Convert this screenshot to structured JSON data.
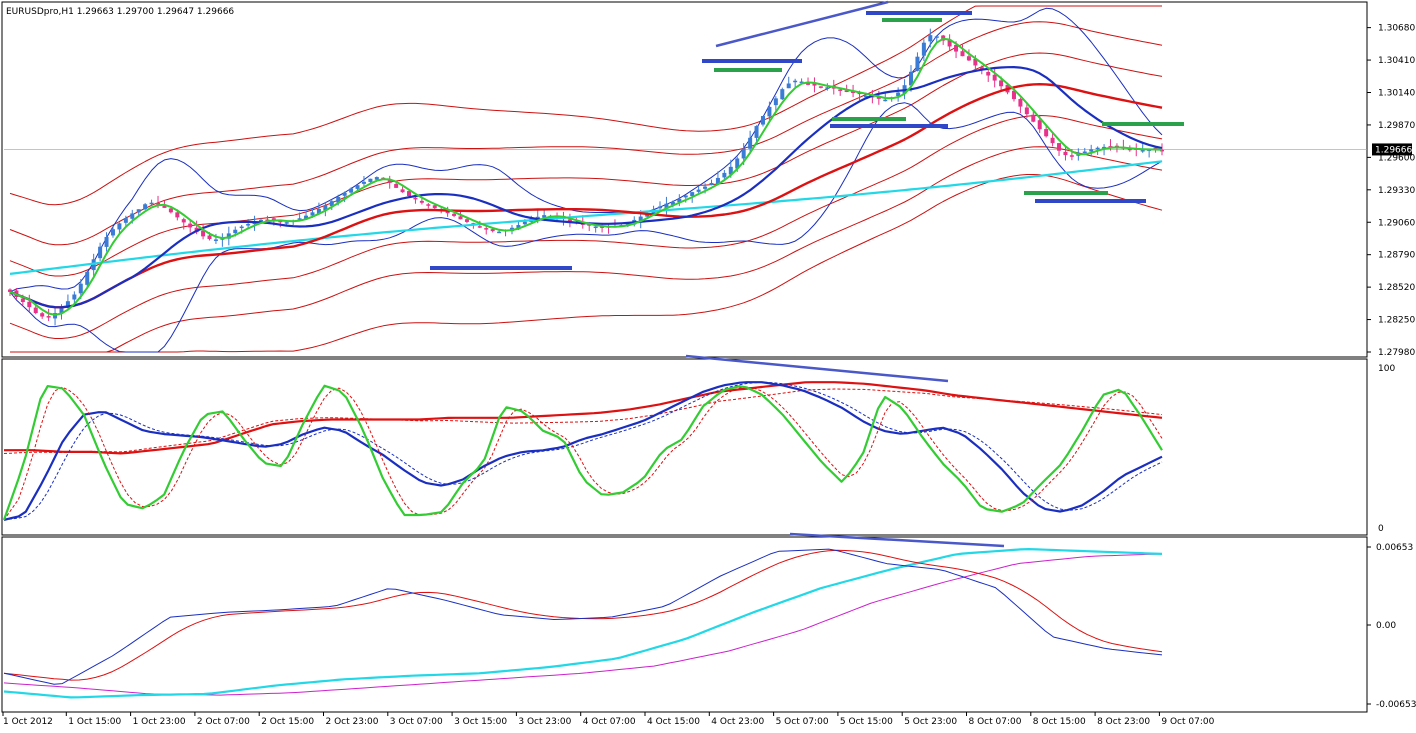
{
  "symbol_label": "EURUSDpro,H1  1.29663 1.29700 1.29647 1.29666",
  "colors": {
    "bull": "#3a7bd5",
    "bear": "#e8318a",
    "ema_fast": "#33cc33",
    "ma_blue": "#1a2fc0",
    "ma_red": "#dd1111",
    "ma_cyan": "#22d8e6",
    "band_blue": "#1a2fc0",
    "band_red": "#cc1111",
    "hline_blue": "#3048c8",
    "hline_green": "#2aa14a",
    "trend_blue": "#4a58c8",
    "magenta": "#cc22cc",
    "grid": "#c8c8c8",
    "frame": "#000000"
  },
  "chart_data": [
    {
      "type": "line",
      "panel": "price",
      "title": "EURUSDpro,H1",
      "ohlc_readout": {
        "open": 1.29663,
        "high": 1.297,
        "low": 1.29647,
        "close": 1.29666
      },
      "y_ticks": [
        "1.30680",
        "1.30410",
        "1.30140",
        "1.29870",
        "1.29600",
        "1.29330",
        "1.29060",
        "1.28790",
        "1.28520",
        "1.28250",
        "1.27980"
      ],
      "ylim": [
        1.2798,
        1.3086
      ],
      "current_price_label": "1.29666",
      "x_ticks": [
        "1 Oct 2012",
        "1 Oct 15:00",
        "1 Oct 23:00",
        "2 Oct 07:00",
        "2 Oct 15:00",
        "2 Oct 23:00",
        "3 Oct 07:00",
        "3 Oct 15:00",
        "3 Oct 23:00",
        "4 Oct 07:00",
        "4 Oct 15:00",
        "4 Oct 23:00",
        "5 Oct 07:00",
        "5 Oct 15:00",
        "5 Oct 23:00",
        "8 Oct 07:00",
        "8 Oct 15:00",
        "8 Oct 23:00",
        "9 Oct 07:00"
      ],
      "close_path": [
        1.2848,
        1.2842,
        1.2836,
        1.2829,
        1.2826,
        1.2831,
        1.2838,
        1.2846,
        1.2859,
        1.2874,
        1.2889,
        1.2899,
        1.2906,
        1.2912,
        1.2917,
        1.2923,
        1.2921,
        1.2917,
        1.2911,
        1.2905,
        1.2899,
        1.2894,
        1.2891,
        1.2893,
        1.2898,
        1.2902,
        1.2905,
        1.2908,
        1.2908,
        1.2907,
        1.2906,
        1.2908,
        1.2911,
        1.2915,
        1.2919,
        1.2924,
        1.2929,
        1.2934,
        1.2938,
        1.2942,
        1.2944,
        1.294,
        1.2934,
        1.2929,
        1.2925,
        1.2921,
        1.2918,
        1.2915,
        1.2912,
        1.2908,
        1.2905,
        1.2902,
        1.2899,
        1.2898,
        1.29,
        1.2903,
        1.2907,
        1.291,
        1.2912,
        1.2911,
        1.2909,
        1.2906,
        1.2904,
        1.2903,
        1.2902,
        1.2902,
        1.2903,
        1.2905,
        1.2909,
        1.2913,
        1.2917,
        1.2921,
        1.2923,
        1.2927,
        1.2931,
        1.2934,
        1.2938,
        1.2944,
        1.295,
        1.296,
        1.2972,
        1.2986,
        1.2998,
        1.3008,
        1.3019,
        1.3024,
        1.3023,
        1.302,
        1.3019,
        1.3018,
        1.3016,
        1.3014,
        1.3013,
        1.3011,
        1.3009,
        1.3008,
        1.3011,
        1.3019,
        1.3035,
        1.3054,
        1.3063,
        1.3059,
        1.3052,
        1.3046,
        1.3041,
        1.3035,
        1.3029,
        1.3023,
        1.3016,
        1.3008,
        1.2999,
        1.299,
        1.2981,
        1.2973,
        1.2964,
        1.296,
        1.2963,
        1.2966,
        1.2968,
        1.2969,
        1.2968,
        1.2967,
        1.2967,
        1.2966,
        1.2967,
        1.2966
      ]
    },
    {
      "type": "line",
      "panel": "stochastic",
      "ylim": [
        0,
        100
      ],
      "y_ticks": [
        "100",
        "0"
      ],
      "series": [
        {
          "values": [
            5,
            40,
            88,
            86,
            70,
            40,
            15,
            12,
            20,
            48,
            70,
            72,
            55,
            40,
            38,
            65,
            88,
            84,
            60,
            30,
            8,
            8,
            10,
            28,
            40,
            75,
            72,
            60,
            55,
            30,
            20,
            22,
            30,
            48,
            55,
            75,
            85,
            88,
            82,
            70,
            55,
            40,
            28,
            45,
            82,
            74,
            56,
            40,
            28,
            12,
            10,
            15,
            28,
            40,
            60,
            82,
            86,
            68,
            48
          ]
        },
        {
          "values": [
            5,
            8,
            30,
            55,
            70,
            72,
            66,
            60,
            58,
            57,
            56,
            54,
            52,
            50,
            52,
            58,
            62,
            60,
            52,
            45,
            36,
            28,
            26,
            30,
            38,
            44,
            47,
            48,
            50,
            55,
            58,
            62,
            66,
            72,
            78,
            84,
            88,
            90,
            90,
            88,
            85,
            80,
            74,
            66,
            60,
            58,
            60,
            62,
            58,
            48,
            36,
            22,
            12,
            10,
            14,
            22,
            32,
            38,
            44
          ]
        },
        {
          "values": [
            48,
            48,
            47,
            47,
            46,
            48,
            50,
            52,
            58,
            64,
            66,
            67,
            67,
            67,
            67,
            68,
            68,
            68,
            69,
            70,
            71,
            73,
            76,
            80,
            84,
            86,
            88,
            90,
            90,
            89,
            87,
            85,
            82,
            80,
            78,
            76,
            74,
            72,
            70,
            68
          ]
        }
      ]
    },
    {
      "type": "line",
      "panel": "macd",
      "y_ticks": [
        "0.00653",
        "0.00",
        "-0.00653"
      ],
      "ylim": [
        -0.00653,
        0.00653
      ]
    }
  ]
}
